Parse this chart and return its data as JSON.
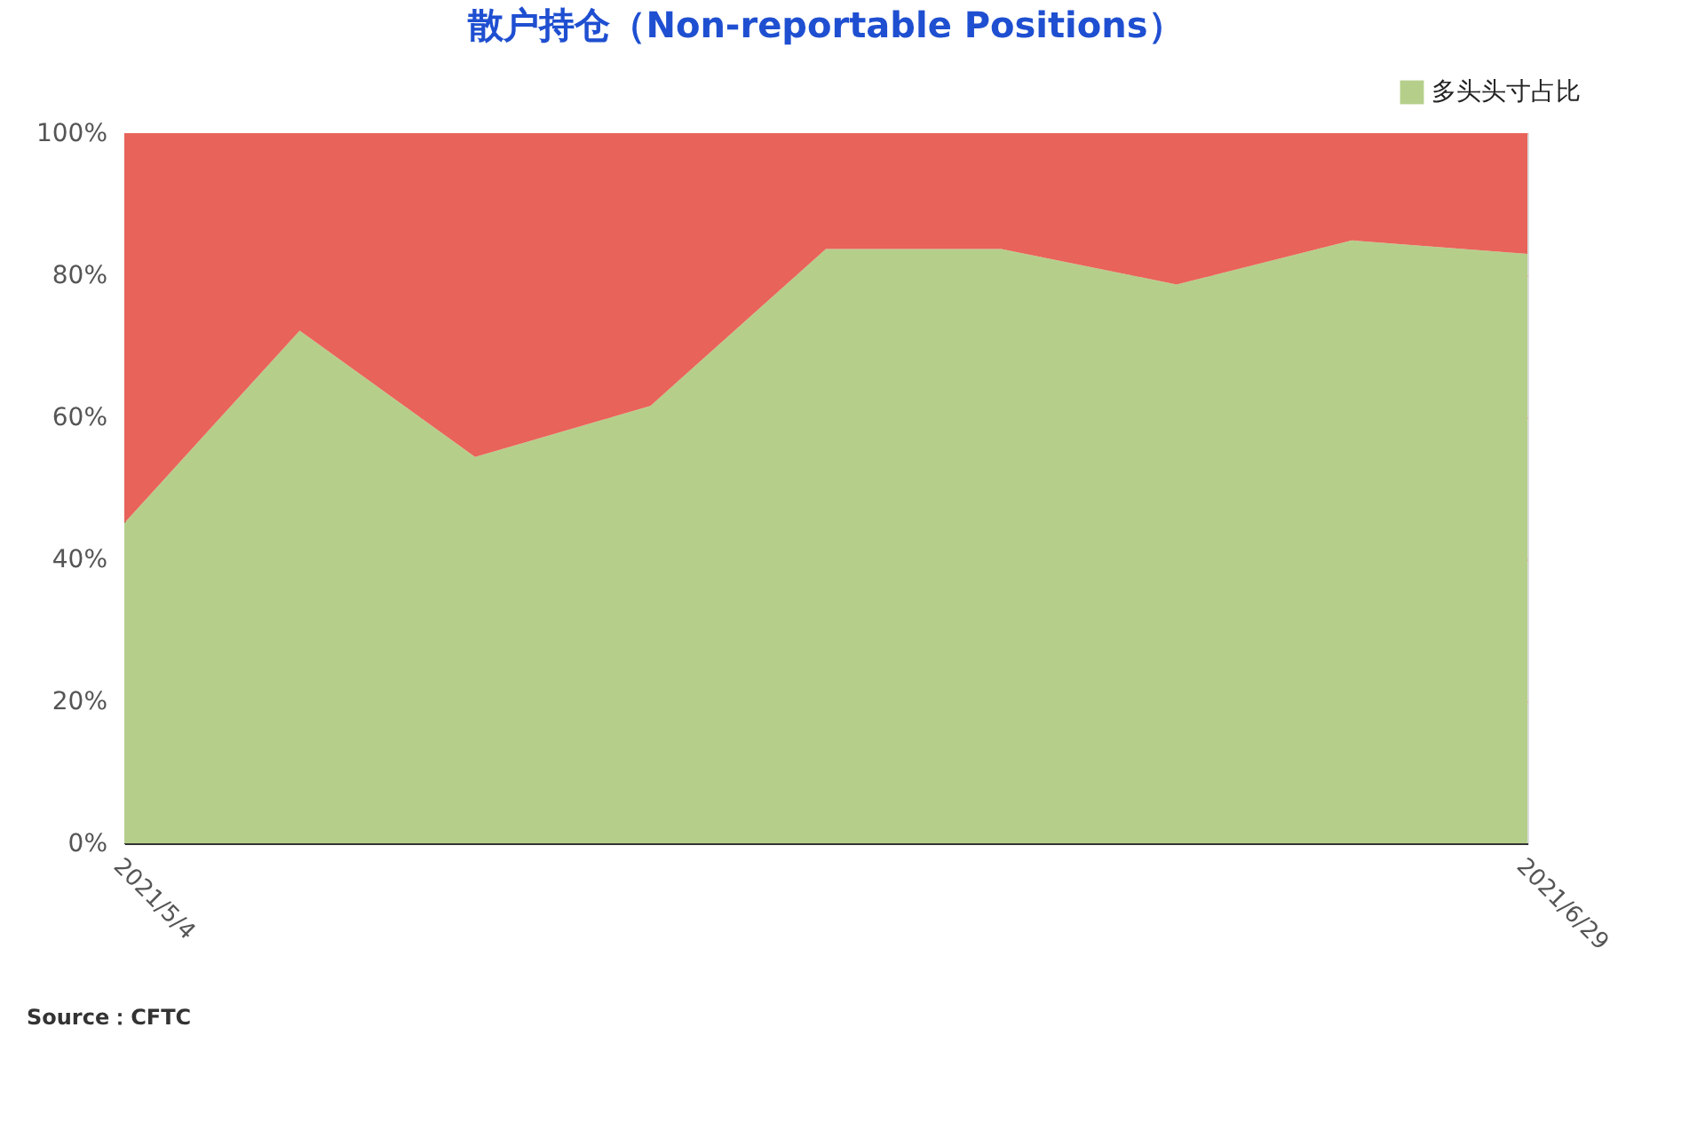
{
  "chart_data": {
    "type": "area",
    "stacked": true,
    "title": "散户持仓（Non-reportable Positions）",
    "categories": [
      "2021/5/4",
      null,
      null,
      null,
      null,
      null,
      null,
      null,
      "2021/6/29"
    ],
    "series": [
      {
        "name": "多头头寸占比",
        "color": "#b5cf8a",
        "values": [
          45.1,
          72.2,
          54.4,
          61.6,
          83.7,
          83.7,
          78.7,
          84.9,
          83.0
        ]
      },
      {
        "color": "#e8635a",
        "values": [
          54.9,
          27.8,
          45.6,
          38.4,
          16.3,
          16.3,
          21.3,
          15.1,
          17.0
        ]
      }
    ],
    "ylim": [
      0,
      100
    ],
    "yticks": [
      {
        "value": 0,
        "label": "0%"
      },
      {
        "value": 20,
        "label": "20%"
      },
      {
        "value": 40,
        "label": "40%"
      },
      {
        "value": 60,
        "label": "60%"
      },
      {
        "value": 80,
        "label": "80%"
      },
      {
        "value": 100,
        "label": "100%"
      }
    ],
    "grid": "y",
    "legend": "top right",
    "annotations": [
      "Source：CFTC"
    ]
  }
}
